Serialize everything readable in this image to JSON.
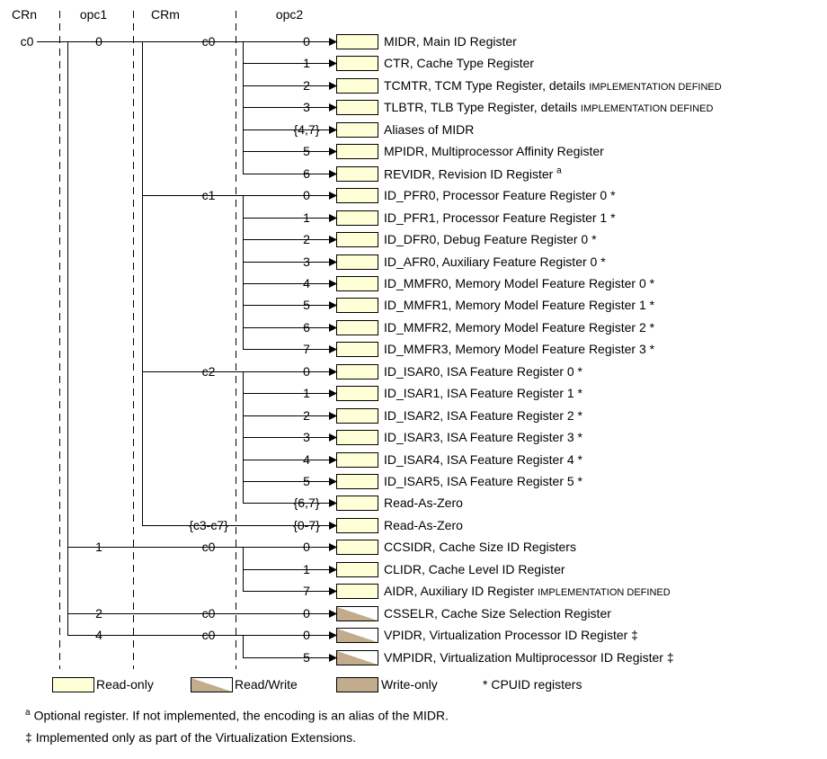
{
  "diagram": {
    "headers": {
      "crn": "CRn",
      "opc1": "opc1",
      "crm": "CRm",
      "opc2": "opc2"
    },
    "crn_value": "c0",
    "opc1_groups": [
      {
        "opc1": "0",
        "crm_groups": [
          {
            "crm": "c0",
            "rows": [
              {
                "opc2": "0",
                "label": "MIDR, Main ID Register",
                "access": "read-only"
              },
              {
                "opc2": "1",
                "label": "CTR, Cache Type Register",
                "access": "read-only"
              },
              {
                "opc2": "2",
                "label": "TCMTR, TCM Type Register, details",
                "smallcaps": "IMPLEMENTATION DEFINED",
                "access": "read-only"
              },
              {
                "opc2": "3",
                "label": "TLBTR, TLB Type Register, details",
                "smallcaps": "IMPLEMENTATION DEFINED",
                "access": "read-only"
              },
              {
                "opc2": "{4,7}",
                "label": "Aliases of MIDR",
                "access": "read-only"
              },
              {
                "opc2": "5",
                "label": "MPIDR, Multiprocessor Affinity Register",
                "access": "read-only"
              },
              {
                "opc2": "6",
                "label": "REVIDR, Revision ID Register",
                "sup": "a",
                "access": "read-only"
              }
            ]
          },
          {
            "crm": "c1",
            "rows": [
              {
                "opc2": "0",
                "label": "ID_PFR0, Processor Feature Register 0 *",
                "access": "read-only"
              },
              {
                "opc2": "1",
                "label": "ID_PFR1, Processor Feature Register 1 *",
                "access": "read-only"
              },
              {
                "opc2": "2",
                "label": "ID_DFR0, Debug Feature Register 0 *",
                "access": "read-only"
              },
              {
                "opc2": "3",
                "label": "ID_AFR0, Auxiliary Feature Register 0 *",
                "access": "read-only"
              },
              {
                "opc2": "4",
                "label": "ID_MMFR0, Memory Model Feature Register 0 *",
                "access": "read-only"
              },
              {
                "opc2": "5",
                "label": "ID_MMFR1, Memory Model Feature Register 1 *",
                "access": "read-only"
              },
              {
                "opc2": "6",
                "label": "ID_MMFR2, Memory Model Feature Register 2 *",
                "access": "read-only"
              },
              {
                "opc2": "7",
                "label": "ID_MMFR3, Memory Model Feature Register 3 *",
                "access": "read-only"
              }
            ]
          },
          {
            "crm": "c2",
            "rows": [
              {
                "opc2": "0",
                "label": "ID_ISAR0, ISA Feature Register 0 *",
                "access": "read-only"
              },
              {
                "opc2": "1",
                "label": "ID_ISAR1, ISA Feature Register 1 *",
                "access": "read-only"
              },
              {
                "opc2": "2",
                "label": "ID_ISAR2, ISA Feature Register 2 *",
                "access": "read-only"
              },
              {
                "opc2": "3",
                "label": "ID_ISAR3, ISA Feature Register 3 *",
                "access": "read-only"
              },
              {
                "opc2": "4",
                "label": "ID_ISAR4, ISA Feature Register 4 *",
                "access": "read-only"
              },
              {
                "opc2": "5",
                "label": "ID_ISAR5, ISA Feature Register 5 *",
                "access": "read-only"
              },
              {
                "opc2": "{6,7}",
                "label": "Read-As-Zero",
                "access": "read-only"
              }
            ]
          },
          {
            "crm": "{c3-c7}",
            "rows": [
              {
                "opc2": "{0-7}",
                "label": "Read-As-Zero",
                "access": "read-only"
              }
            ]
          }
        ]
      },
      {
        "opc1": "1",
        "crm_groups": [
          {
            "crm": "c0",
            "rows": [
              {
                "opc2": "0",
                "label": "CCSIDR, Cache Size ID Registers",
                "access": "read-only"
              },
              {
                "opc2": "1",
                "label": "CLIDR, Cache Level ID Register",
                "access": "read-only"
              },
              {
                "opc2": "7",
                "label": "AIDR, Auxiliary ID Register",
                "smallcaps": "IMPLEMENTATION DEFINED",
                "access": "read-only"
              }
            ]
          }
        ]
      },
      {
        "opc1": "2",
        "crm_groups": [
          {
            "crm": "c0",
            "rows": [
              {
                "opc2": "0",
                "label": "CSSELR, Cache Size Selection Register",
                "access": "read-write"
              }
            ]
          }
        ]
      },
      {
        "opc1": "4",
        "crm_groups": [
          {
            "crm": "c0",
            "rows": [
              {
                "opc2": "0",
                "label": "VPIDR, Virtualization Processor ID Register ‡",
                "access": "read-write"
              },
              {
                "opc2": "5",
                "label": "VMPIDR, Virtualization Multiprocessor ID Register ‡",
                "access": "read-write"
              }
            ]
          }
        ]
      }
    ]
  },
  "legend": {
    "items": [
      {
        "label": "Read-only",
        "access": "read-only"
      },
      {
        "label": "Read/Write",
        "access": "read-write"
      },
      {
        "label": "Write-only",
        "access": "write-only"
      }
    ],
    "note": "* CPUID registers"
  },
  "footnotes": [
    {
      "marker": "a",
      "superscript": true,
      "text": "Optional register. If not implemented, the encoding is an alias of the MIDR."
    },
    {
      "marker": "‡",
      "superscript": false,
      "text": "Implemented only as part of the Virtualization Extensions."
    }
  ],
  "colors": {
    "read_only_fill": "#FFFFD7",
    "write_only_fill": "#C3AB8E",
    "line": "#000000"
  }
}
